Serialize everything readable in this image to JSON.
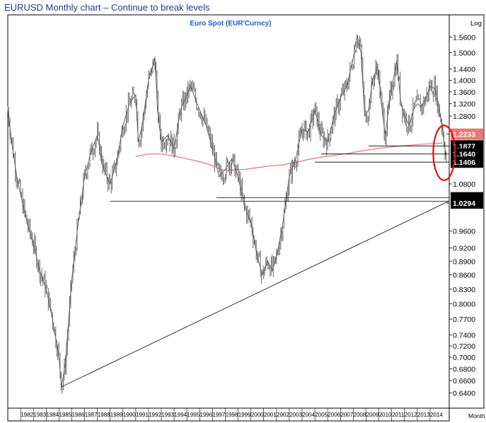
{
  "caption": "EURUSD Monthly chart – Continue to break levels",
  "chart_data": {
    "type": "line",
    "title": "Euro Spot (EUR'Curncy)",
    "scale": "log",
    "scale_label": "Log",
    "period_label": "Month",
    "y_ticks": [
      1.56,
      1.5,
      1.44,
      1.4,
      1.36,
      1.32,
      1.28,
      1.08,
      0.96,
      0.92,
      0.89,
      0.86,
      0.83,
      0.8,
      0.77,
      0.74,
      0.72,
      0.7,
      0.68,
      0.66,
      0.64
    ],
    "y_tick_labels": [
      "1.5600",
      "1.5000",
      "1.4400",
      "1.4000",
      "1.3600",
      "1.3200",
      "1.2800",
      "1.0800",
      "0.9600",
      "0.9200",
      "0.8900",
      "0.8600",
      "0.8300",
      "0.8000",
      "0.7700",
      "0.7400",
      "0.7200",
      "0.7000",
      "0.6800",
      "0.6600",
      "0.6400"
    ],
    "x_labels": [
      "1982",
      "1983",
      "1984",
      "1985",
      "1986",
      "1987",
      "1988",
      "1989",
      "1990",
      "1991",
      "1992",
      "1993",
      "1994",
      "1995",
      "1996",
      "1997",
      "1998",
      "1999",
      "2000",
      "2001",
      "2002",
      "2003",
      "2004",
      "2005",
      "2006",
      "2007",
      "2008",
      "2009",
      "2010",
      "2011",
      "2012",
      "2013",
      "2014"
    ],
    "x_range": [
      1981.0,
      2015.5
    ],
    "y_range": [
      0.625,
      1.62
    ],
    "price_series": {
      "x": [
        1981.0,
        1981.3,
        1981.7,
        1982.0,
        1982.5,
        1983.0,
        1983.5,
        1984.0,
        1984.5,
        1985.0,
        1985.2,
        1985.5,
        1986.0,
        1986.5,
        1987.0,
        1987.5,
        1988.0,
        1988.5,
        1989.0,
        1989.5,
        1990.0,
        1990.5,
        1991.0,
        1991.2,
        1991.5,
        1992.0,
        1992.5,
        1992.7,
        1993.0,
        1993.5,
        1994.0,
        1994.5,
        1995.0,
        1995.3,
        1995.7,
        1996.0,
        1996.5,
        1997.0,
        1997.5,
        1998.0,
        1998.5,
        1999.0,
        1999.5,
        2000.0,
        2000.5,
        2000.9,
        2001.3,
        2001.7,
        2002.0,
        2002.5,
        2003.0,
        2003.5,
        2004.0,
        2004.5,
        2005.0,
        2005.5,
        2006.0,
        2006.5,
        2007.0,
        2007.5,
        2008.0,
        2008.3,
        2008.6,
        2008.9,
        2009.2,
        2009.5,
        2009.9,
        2010.2,
        2010.5,
        2010.9,
        2011.2,
        2011.4,
        2011.7,
        2012.0,
        2012.4,
        2012.7,
        2013.0,
        2013.3,
        2013.6,
        2014.0,
        2014.4,
        2014.7,
        2014.9,
        2015.1,
        2015.3
      ],
      "y": [
        1.3,
        1.2,
        1.1,
        1.05,
        0.98,
        0.93,
        0.87,
        0.83,
        0.77,
        0.7,
        0.65,
        0.69,
        0.85,
        0.98,
        1.1,
        1.17,
        1.22,
        1.12,
        1.08,
        1.14,
        1.25,
        1.32,
        1.35,
        1.2,
        1.25,
        1.4,
        1.48,
        1.3,
        1.2,
        1.22,
        1.18,
        1.3,
        1.35,
        1.38,
        1.33,
        1.3,
        1.25,
        1.18,
        1.1,
        1.12,
        1.15,
        1.1,
        1.02,
        0.98,
        0.9,
        0.86,
        0.89,
        0.87,
        0.9,
        0.98,
        1.1,
        1.15,
        1.24,
        1.23,
        1.3,
        1.22,
        1.2,
        1.28,
        1.34,
        1.38,
        1.48,
        1.57,
        1.5,
        1.28,
        1.3,
        1.4,
        1.45,
        1.32,
        1.22,
        1.35,
        1.42,
        1.47,
        1.33,
        1.28,
        1.25,
        1.3,
        1.32,
        1.31,
        1.33,
        1.38,
        1.37,
        1.3,
        1.26,
        1.2,
        1.14
      ]
    },
    "moving_average": {
      "color": "#e47575",
      "x": [
        1991.0,
        1992.0,
        1993.0,
        1994.0,
        1995.0,
        1996.0,
        1997.0,
        1997.8,
        1998.5,
        1999.5,
        2000.5,
        2001.5,
        2002.5,
        2003.5,
        2004.5,
        2005.5,
        2006.5,
        2007.5,
        2008.5,
        2009.5,
        2010.5,
        2011.5,
        2012.5,
        2013.5,
        2014.5,
        2015.0
      ],
      "y": [
        1.157,
        1.164,
        1.164,
        1.158,
        1.15,
        1.142,
        1.13,
        1.118,
        1.118,
        1.12,
        1.125,
        1.13,
        1.133,
        1.14,
        1.148,
        1.155,
        1.16,
        1.165,
        1.172,
        1.178,
        1.183,
        1.187,
        1.19,
        1.193,
        1.195,
        1.197
      ]
    },
    "trendline": {
      "x": [
        1985.2,
        2015.5
      ],
      "y": [
        0.65,
        1.035
      ]
    },
    "horizontal_levels": [
      {
        "label": "1.2233",
        "value": 1.2233,
        "bg": "#f07575",
        "from": 2015.3
      },
      {
        "label": "1.1877",
        "value": 1.1877,
        "bg": "#000000",
        "from": 2009.2
      },
      {
        "label": "1.1640",
        "value": 1.164,
        "bg": "#000000",
        "from": 2005.5
      },
      {
        "label": "1.1406",
        "value": 1.1406,
        "bg": "#000000",
        "from": 2005.0
      },
      {
        "label": "1.0433",
        "value": 1.0433,
        "bg": "#000000",
        "from": 1997.3
      },
      {
        "label": "1.0341",
        "value": 1.0341,
        "bg": "#000000",
        "from": 1989.0
      },
      {
        "label": "1.0294",
        "value": 1.0294,
        "bg": "#000000",
        "from": 2015.3
      }
    ],
    "highlight": {
      "shape": "ellipse",
      "color": "#dd1111",
      "center_x": 2015.1,
      "center_y": 1.165,
      "rx_years": 0.85,
      "ry_value_top": 1.25,
      "ry_value_bottom": 1.09
    },
    "grid": false,
    "legend": "none"
  }
}
